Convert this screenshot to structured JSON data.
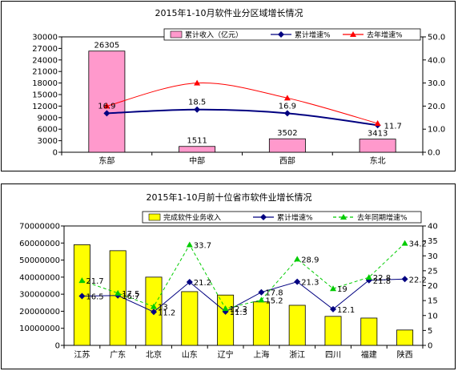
{
  "chart_data": [
    {
      "type": "bar",
      "title": "2015年1-10月软件业分区域增长情况",
      "categories": [
        "东部",
        "中部",
        "西部",
        "东北"
      ],
      "series": [
        {
          "name": "累计收入（亿元）",
          "kind": "bar",
          "axis": "left",
          "values": [
            26305,
            1511,
            3502,
            3413
          ],
          "color": "#ff99cc"
        },
        {
          "name": "累计增速%",
          "kind": "line",
          "axis": "right",
          "values": [
            16.9,
            18.5,
            16.9,
            11.7
          ],
          "color": "#000080",
          "marker": "diamond"
        },
        {
          "name": "去年增速%",
          "kind": "line",
          "axis": "right",
          "values": [
            20.0,
            30.0,
            23.5,
            12.5
          ],
          "color": "#ff0000",
          "marker": "triangle"
        }
      ],
      "bar_labels": [
        "26305",
        "1511",
        "3502",
        "3413"
      ],
      "line_labels": [
        "16.9",
        "18.5",
        "16.9",
        "11.7"
      ],
      "y_left": {
        "min": 0,
        "max": 30000,
        "step": 3000,
        "ticks": [
          "0",
          "3000",
          "6000",
          "9000",
          "12000",
          "15000",
          "18000",
          "21000",
          "24000",
          "27000",
          "30000"
        ]
      },
      "y_right": {
        "min": 0,
        "max": 50,
        "step": 10,
        "ticks": [
          "0.0",
          "10.0",
          "20.0",
          "30.0",
          "40.0",
          "50.0"
        ]
      },
      "legend_position": "top"
    },
    {
      "type": "bar",
      "title": "2015年1-10月前十位省市软件业增长情况",
      "categories": [
        "江苏",
        "广东",
        "北京",
        "山东",
        "辽宁",
        "上海",
        "浙江",
        "四川",
        "福建",
        "陕西"
      ],
      "series": [
        {
          "name": "完成软件业务收入",
          "kind": "bar",
          "axis": "left",
          "values": [
            59000000,
            55500000,
            40000000,
            31500000,
            29500000,
            25500000,
            23500000,
            17000000,
            16000000,
            9000000
          ],
          "color": "#ffff00"
        },
        {
          "name": "累计增速%",
          "kind": "line",
          "axis": "right",
          "values": [
            16.5,
            16.7,
            11.2,
            21.2,
            11.3,
            17.8,
            21.3,
            12.1,
            21.8,
            22.2
          ],
          "color": "#000080",
          "marker": "diamond"
        },
        {
          "name": "去年同期增速%",
          "kind": "line",
          "axis": "right",
          "values": [
            21.7,
            17.5,
            13,
            33.7,
            12.3,
            15.2,
            28.9,
            19,
            22.8,
            34.2
          ],
          "color": "#00cc00",
          "marker": "triangle",
          "dashed": true
        }
      ],
      "line_labels": {
        "累计增速%": [
          "16.5",
          "16.7",
          "11.2",
          "21.2",
          "11.3",
          "17.8",
          "21.3",
          "12.1",
          "21.8",
          "22.2"
        ],
        "去年同期增速%": [
          "21.7",
          "17.5",
          "13",
          "33.7",
          "12.3",
          "15.2",
          "28.9",
          "19",
          "22.8",
          "34.2"
        ]
      },
      "y_left": {
        "min": 0,
        "max": 70000000,
        "step": 10000000,
        "ticks": [
          "0",
          "10000000",
          "20000000",
          "30000000",
          "40000000",
          "50000000",
          "60000000",
          "70000000"
        ]
      },
      "y_right": {
        "min": 0,
        "max": 40,
        "step": 5,
        "ticks": [
          "0",
          "5",
          "10",
          "15",
          "20",
          "25",
          "30",
          "35",
          "40"
        ]
      },
      "legend_position": "top"
    }
  ]
}
